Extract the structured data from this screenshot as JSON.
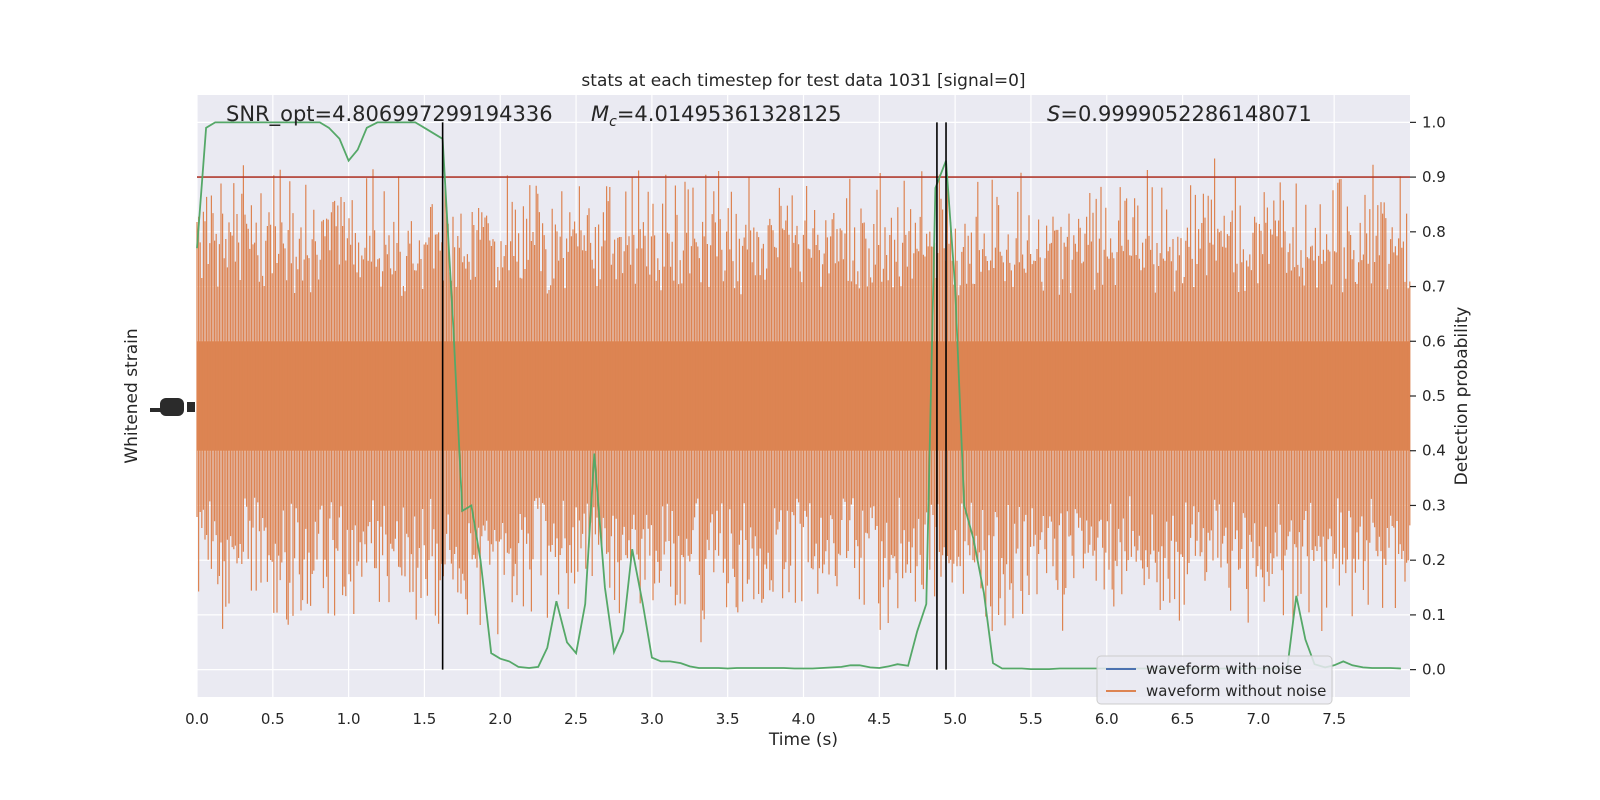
{
  "chart_data": {
    "type": "line",
    "title": "stats at each timestep for test data 1031 [signal=0]",
    "xlabel": "Time (s)",
    "ylabel_left": "Whitened strain",
    "ylabel_right": "Detection probability",
    "xlim": [
      0.0,
      8.0
    ],
    "ylim_right": [
      -0.05,
      1.05
    ],
    "x_ticks": [
      "0.0",
      "0.5",
      "1.0",
      "1.5",
      "2.0",
      "2.5",
      "3.0",
      "3.5",
      "4.0",
      "4.5",
      "5.0",
      "5.5",
      "6.0",
      "6.5",
      "7.0",
      "7.5"
    ],
    "x_tick_values": [
      0,
      0.5,
      1,
      1.5,
      2,
      2.5,
      3,
      3.5,
      4,
      4.5,
      5,
      5.5,
      6,
      6.5,
      7,
      7.5
    ],
    "y_ticks_right": [
      "0.0",
      "0.1",
      "0.2",
      "0.3",
      "0.4",
      "0.5",
      "0.6",
      "0.7",
      "0.8",
      "0.9",
      "1.0"
    ],
    "y_tick_values_right": [
      0,
      0.1,
      0.2,
      0.3,
      0.4,
      0.5,
      0.6,
      0.7,
      0.8,
      0.9,
      1.0
    ],
    "grid": true,
    "legend_position": "lower-right",
    "annotations": {
      "snr": "SNR_opt=4.806997299194336",
      "mc_symbol": "M",
      "mc_sub": "c",
      "mc_value": "=4.01495361328125",
      "s_symbol": "S",
      "s_value": "=0.9999052286148071"
    },
    "threshold": 0.9,
    "vertical_lines_x": [
      1.62,
      4.88,
      4.94
    ],
    "series": [
      {
        "name": "waveform with noise",
        "color": "#4c72b0",
        "values": []
      },
      {
        "name": "waveform without noise",
        "color": "#dd8452",
        "band_center": 0.5,
        "band_core_halfwidth": 0.1,
        "band_typical_halfwidth": 0.3,
        "band_peak_max": 0.95,
        "band_peak_min": 0.03
      },
      {
        "name": "Detection probability",
        "color": "#55a868",
        "x": [
          0.0,
          0.06,
          0.12,
          0.18,
          0.25,
          0.31,
          0.37,
          0.44,
          0.5,
          0.56,
          0.62,
          0.68,
          0.75,
          0.81,
          0.87,
          0.94,
          1.0,
          1.06,
          1.12,
          1.19,
          1.25,
          1.31,
          1.37,
          1.44,
          1.5,
          1.56,
          1.62,
          1.69,
          1.75,
          1.81,
          1.87,
          1.94,
          2.0,
          2.06,
          2.12,
          2.19,
          2.25,
          2.31,
          2.37,
          2.44,
          2.5,
          2.56,
          2.62,
          2.69,
          2.75,
          2.81,
          2.87,
          2.94,
          3.0,
          3.06,
          3.12,
          3.19,
          3.25,
          3.31,
          3.37,
          3.44,
          3.5,
          3.56,
          3.62,
          3.69,
          3.75,
          3.81,
          3.87,
          3.94,
          4.0,
          4.06,
          4.12,
          4.19,
          4.25,
          4.31,
          4.37,
          4.44,
          4.5,
          4.56,
          4.62,
          4.69,
          4.75,
          4.81,
          4.87,
          4.94,
          5.0,
          5.06,
          5.12,
          5.19,
          5.25,
          5.31,
          5.37,
          5.44,
          5.5,
          5.56,
          5.62,
          5.69,
          5.75,
          5.81,
          5.87,
          5.94,
          6.0,
          6.06,
          6.12,
          6.19,
          6.25,
          6.31,
          6.37,
          6.44,
          6.5,
          6.56,
          6.62,
          6.69,
          6.75,
          6.81,
          6.87,
          6.94,
          7.0,
          7.06,
          7.12,
          7.19,
          7.25,
          7.31,
          7.37,
          7.44,
          7.5,
          7.56,
          7.62,
          7.69,
          7.75,
          7.81,
          7.87,
          7.94
        ],
        "values": [
          0.77,
          0.99,
          1.0,
          1.0,
          1.0,
          1.0,
          1.0,
          1.0,
          1.0,
          1.0,
          1.0,
          1.0,
          1.0,
          1.0,
          0.99,
          0.97,
          0.93,
          0.95,
          0.99,
          1.0,
          1.0,
          1.0,
          1.0,
          1.0,
          0.99,
          0.98,
          0.97,
          0.63,
          0.29,
          0.3,
          0.2,
          0.03,
          0.02,
          0.015,
          0.005,
          0.003,
          0.005,
          0.04,
          0.125,
          0.05,
          0.03,
          0.12,
          0.395,
          0.15,
          0.032,
          0.07,
          0.22,
          0.12,
          0.022,
          0.015,
          0.015,
          0.012,
          0.006,
          0.003,
          0.003,
          0.003,
          0.002,
          0.003,
          0.003,
          0.003,
          0.003,
          0.003,
          0.003,
          0.002,
          0.002,
          0.002,
          0.003,
          0.004,
          0.005,
          0.008,
          0.008,
          0.004,
          0.003,
          0.006,
          0.01,
          0.007,
          0.07,
          0.12,
          0.88,
          0.93,
          0.7,
          0.3,
          0.24,
          0.14,
          0.012,
          0.002,
          0.002,
          0.002,
          0.001,
          0.001,
          0.001,
          0.002,
          0.002,
          0.002,
          0.002,
          0.002,
          0.002,
          0.002,
          0.002,
          0.002,
          0.002,
          0.002,
          0.002,
          0.002,
          0.002,
          0.002,
          0.002,
          0.002,
          0.002,
          0.002,
          0.002,
          0.002,
          0.002,
          0.002,
          0.002,
          0.002,
          0.135,
          0.055,
          0.01,
          0.004,
          0.008,
          0.015,
          0.008,
          0.004,
          0.003,
          0.003,
          0.003,
          0.002
        ]
      }
    ]
  }
}
